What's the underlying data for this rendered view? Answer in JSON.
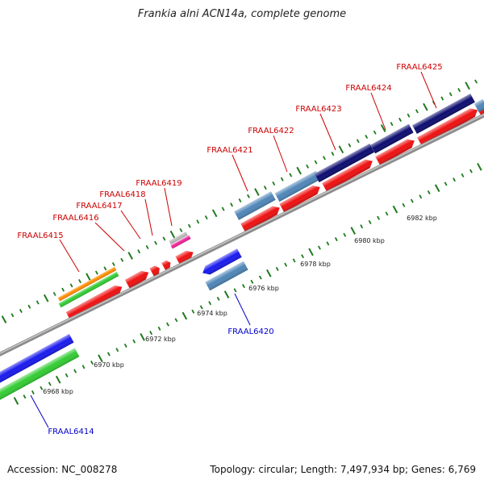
{
  "title": "Frankia alni ACN14a, complete genome",
  "footer": {
    "accession": "Accession: NC_008278",
    "summary": "Topology: circular; Length: 7,497,934 bp; Genes: 6,769"
  },
  "scale_labels": [
    "6968 kbp",
    "6970 kbp",
    "6972 kbp",
    "6974 kbp",
    "6976 kbp",
    "6978 kbp",
    "6980 kbp",
    "6982 kbp"
  ],
  "gene_labels": [
    {
      "text": "FRAAL6414",
      "color": "#0000cc"
    },
    {
      "text": "FRAAL6415",
      "color": "#cc0000"
    },
    {
      "text": "FRAAL6416",
      "color": "#cc0000"
    },
    {
      "text": "FRAAL6417",
      "color": "#cc0000"
    },
    {
      "text": "FRAAL6418",
      "color": "#cc0000"
    },
    {
      "text": "FRAAL6419",
      "color": "#cc0000"
    },
    {
      "text": "FRAAL6420",
      "color": "#0000cc"
    },
    {
      "text": "FRAAL6421",
      "color": "#cc0000"
    },
    {
      "text": "FRAAL6422",
      "color": "#cc0000"
    },
    {
      "text": "FRAAL6423",
      "color": "#cc0000"
    },
    {
      "text": "FRAAL6424",
      "color": "#cc0000"
    },
    {
      "text": "FRAAL6425",
      "color": "#cc0000"
    }
  ],
  "colors": {
    "backbone": "#8c8c8c",
    "gene_red": "#ee1111",
    "gene_blue": "#1a1aee",
    "gene_green": "#33cc33",
    "gene_orange": "#ff8c00",
    "gene_steelblue": "#4f86b8",
    "gene_navy": "#0c0c70",
    "gene_pink": "#ee2299",
    "gene_gray": "#bbbbbb",
    "tick_green": "#1e7a1e"
  }
}
